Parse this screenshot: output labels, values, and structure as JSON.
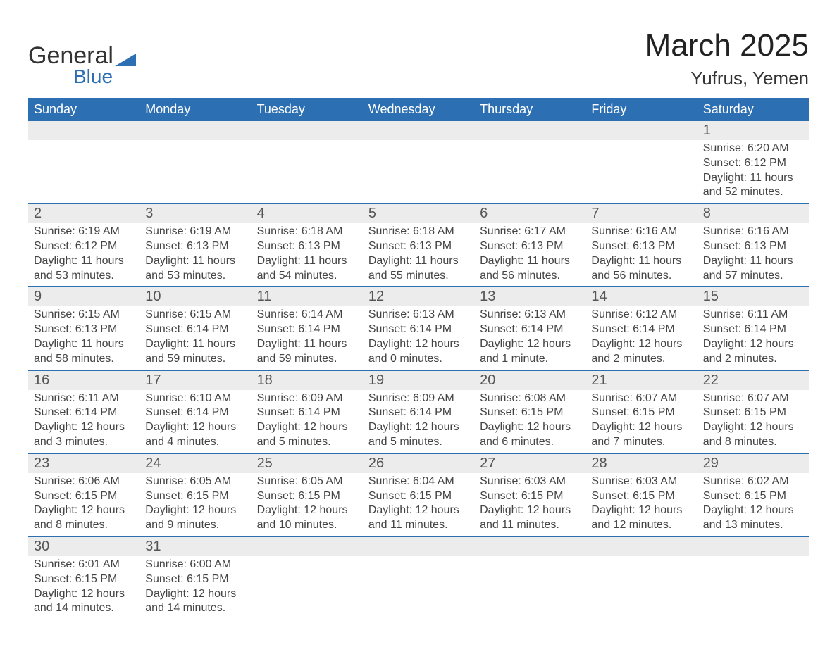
{
  "logo": {
    "general": "General",
    "blue": "Blue",
    "triangle_color": "#2c6fb2"
  },
  "title": "March 2025",
  "location": "Yufrus, Yemen",
  "colors": {
    "header_bg": "#2c6fb2",
    "header_text": "#ffffff",
    "daynum_bg": "#ececec",
    "border": "#2c6fb2",
    "text": "#444444"
  },
  "layout": {
    "columns": 7,
    "rows": 6,
    "first_day_column_index": 6
  },
  "weekdays": [
    "Sunday",
    "Monday",
    "Tuesday",
    "Wednesday",
    "Thursday",
    "Friday",
    "Saturday"
  ],
  "days": [
    {
      "n": 1,
      "sunrise": "6:20 AM",
      "sunset": "6:12 PM",
      "daylight": "11 hours and 52 minutes."
    },
    {
      "n": 2,
      "sunrise": "6:19 AM",
      "sunset": "6:12 PM",
      "daylight": "11 hours and 53 minutes."
    },
    {
      "n": 3,
      "sunrise": "6:19 AM",
      "sunset": "6:13 PM",
      "daylight": "11 hours and 53 minutes."
    },
    {
      "n": 4,
      "sunrise": "6:18 AM",
      "sunset": "6:13 PM",
      "daylight": "11 hours and 54 minutes."
    },
    {
      "n": 5,
      "sunrise": "6:18 AM",
      "sunset": "6:13 PM",
      "daylight": "11 hours and 55 minutes."
    },
    {
      "n": 6,
      "sunrise": "6:17 AM",
      "sunset": "6:13 PM",
      "daylight": "11 hours and 56 minutes."
    },
    {
      "n": 7,
      "sunrise": "6:16 AM",
      "sunset": "6:13 PM",
      "daylight": "11 hours and 56 minutes."
    },
    {
      "n": 8,
      "sunrise": "6:16 AM",
      "sunset": "6:13 PM",
      "daylight": "11 hours and 57 minutes."
    },
    {
      "n": 9,
      "sunrise": "6:15 AM",
      "sunset": "6:13 PM",
      "daylight": "11 hours and 58 minutes."
    },
    {
      "n": 10,
      "sunrise": "6:15 AM",
      "sunset": "6:14 PM",
      "daylight": "11 hours and 59 minutes."
    },
    {
      "n": 11,
      "sunrise": "6:14 AM",
      "sunset": "6:14 PM",
      "daylight": "11 hours and 59 minutes."
    },
    {
      "n": 12,
      "sunrise": "6:13 AM",
      "sunset": "6:14 PM",
      "daylight": "12 hours and 0 minutes."
    },
    {
      "n": 13,
      "sunrise": "6:13 AM",
      "sunset": "6:14 PM",
      "daylight": "12 hours and 1 minute."
    },
    {
      "n": 14,
      "sunrise": "6:12 AM",
      "sunset": "6:14 PM",
      "daylight": "12 hours and 2 minutes."
    },
    {
      "n": 15,
      "sunrise": "6:11 AM",
      "sunset": "6:14 PM",
      "daylight": "12 hours and 2 minutes."
    },
    {
      "n": 16,
      "sunrise": "6:11 AM",
      "sunset": "6:14 PM",
      "daylight": "12 hours and 3 minutes."
    },
    {
      "n": 17,
      "sunrise": "6:10 AM",
      "sunset": "6:14 PM",
      "daylight": "12 hours and 4 minutes."
    },
    {
      "n": 18,
      "sunrise": "6:09 AM",
      "sunset": "6:14 PM",
      "daylight": "12 hours and 5 minutes."
    },
    {
      "n": 19,
      "sunrise": "6:09 AM",
      "sunset": "6:14 PM",
      "daylight": "12 hours and 5 minutes."
    },
    {
      "n": 20,
      "sunrise": "6:08 AM",
      "sunset": "6:15 PM",
      "daylight": "12 hours and 6 minutes."
    },
    {
      "n": 21,
      "sunrise": "6:07 AM",
      "sunset": "6:15 PM",
      "daylight": "12 hours and 7 minutes."
    },
    {
      "n": 22,
      "sunrise": "6:07 AM",
      "sunset": "6:15 PM",
      "daylight": "12 hours and 8 minutes."
    },
    {
      "n": 23,
      "sunrise": "6:06 AM",
      "sunset": "6:15 PM",
      "daylight": "12 hours and 8 minutes."
    },
    {
      "n": 24,
      "sunrise": "6:05 AM",
      "sunset": "6:15 PM",
      "daylight": "12 hours and 9 minutes."
    },
    {
      "n": 25,
      "sunrise": "6:05 AM",
      "sunset": "6:15 PM",
      "daylight": "12 hours and 10 minutes."
    },
    {
      "n": 26,
      "sunrise": "6:04 AM",
      "sunset": "6:15 PM",
      "daylight": "12 hours and 11 minutes."
    },
    {
      "n": 27,
      "sunrise": "6:03 AM",
      "sunset": "6:15 PM",
      "daylight": "12 hours and 11 minutes."
    },
    {
      "n": 28,
      "sunrise": "6:03 AM",
      "sunset": "6:15 PM",
      "daylight": "12 hours and 12 minutes."
    },
    {
      "n": 29,
      "sunrise": "6:02 AM",
      "sunset": "6:15 PM",
      "daylight": "12 hours and 13 minutes."
    },
    {
      "n": 30,
      "sunrise": "6:01 AM",
      "sunset": "6:15 PM",
      "daylight": "12 hours and 14 minutes."
    },
    {
      "n": 31,
      "sunrise": "6:00 AM",
      "sunset": "6:15 PM",
      "daylight": "12 hours and 14 minutes."
    }
  ],
  "labels": {
    "sunrise": "Sunrise: ",
    "sunset": "Sunset: ",
    "daylight": "Daylight: "
  }
}
